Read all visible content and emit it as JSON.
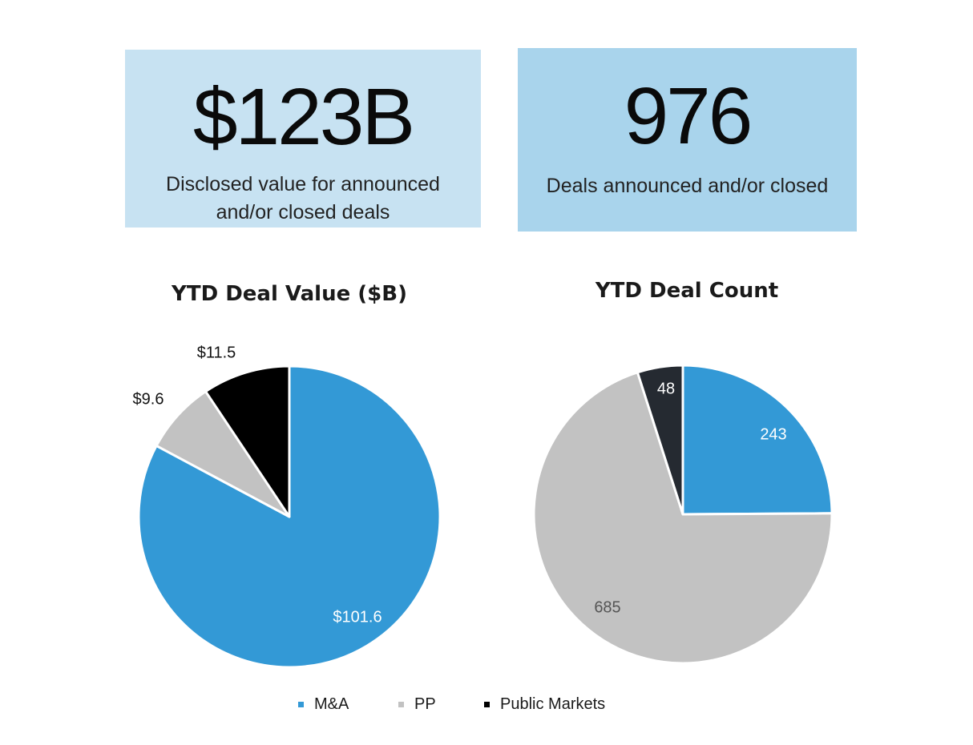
{
  "summary": {
    "value_card": {
      "value": "$123B",
      "caption": "Disclosed value for announced and/or closed deals",
      "color": "#c7e2f2"
    },
    "count_card": {
      "value": "976",
      "caption": "Deals announced and/or closed",
      "color": "#a9d4ec"
    }
  },
  "colors": {
    "ma": "#3399d6",
    "pp": "#c2c2c2",
    "public_value": "#000000",
    "public_count": "#252a31"
  },
  "legend": [
    {
      "label": "M&A",
      "color": "#3399d6"
    },
    {
      "label": "PP",
      "color": "#c2c2c2"
    },
    {
      "label": "Public Markets",
      "color": "#000000"
    }
  ],
  "chart_data": [
    {
      "type": "pie",
      "title": "YTD Deal Value ($B)",
      "categories": [
        "M&A",
        "PP",
        "Public Markets"
      ],
      "values": [
        101.6,
        9.6,
        11.5
      ],
      "labels": [
        "$101.6",
        "$9.6",
        "$11.5"
      ],
      "colors": [
        "#3399d6",
        "#c2c2c2",
        "#000000"
      ],
      "legend": "bottom"
    },
    {
      "type": "pie",
      "title": "YTD Deal Count",
      "categories": [
        "M&A",
        "PP",
        "Public Markets"
      ],
      "values": [
        243,
        685,
        48
      ],
      "labels": [
        "243",
        "685",
        "48"
      ],
      "colors": [
        "#3399d6",
        "#c2c2c2",
        "#252a31"
      ],
      "legend": "bottom"
    }
  ]
}
